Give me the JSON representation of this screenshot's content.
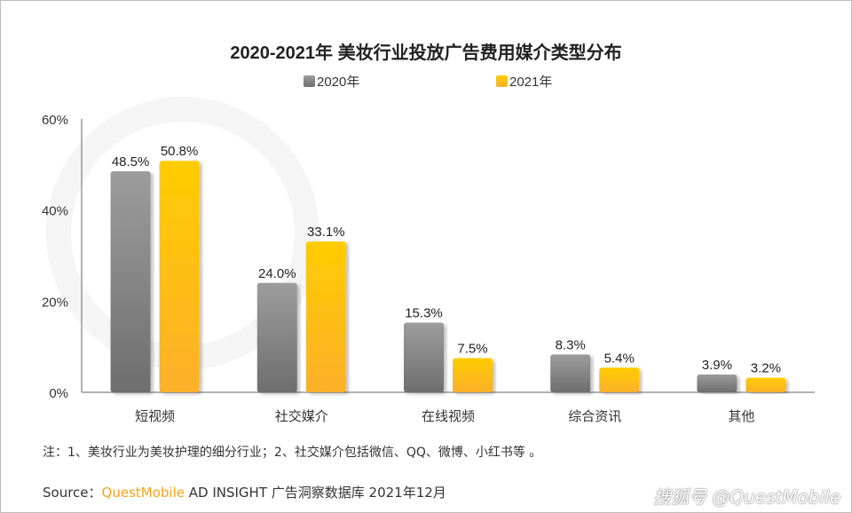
{
  "chart_data": {
    "type": "bar",
    "title": "2020-2021年 美妆行业投放广告费用媒介类型分布",
    "categories": [
      "短视频",
      "社交媒介",
      "在线视频",
      "综合资讯",
      "其他"
    ],
    "series": [
      {
        "name": "2020年",
        "values": [
          48.5,
          24.0,
          15.3,
          8.3,
          3.9
        ],
        "color": "#8a8a8a"
      },
      {
        "name": "2021年",
        "values": [
          50.8,
          33.1,
          7.5,
          5.4,
          3.2
        ],
        "color": "#ffc000"
      }
    ],
    "ylim": [
      0,
      60
    ],
    "yticks": [
      0,
      20,
      40,
      60
    ],
    "ytick_labels": [
      "0%",
      "20%",
      "40%",
      "60%"
    ],
    "legend": "top",
    "grid": false,
    "watermark": "QUEST MOBILE"
  },
  "note": "注：1、美妆行业为美妆护理的细分行业；2、社交媒介包括微信、QQ、微博、小红书等 。",
  "source": {
    "label": "Source：",
    "brand": "QuestMobile",
    "rest": " AD INSIGHT 广告洞察数据库 2021年12月"
  },
  "watermark_text": "搜狐号 @QuestMobile"
}
